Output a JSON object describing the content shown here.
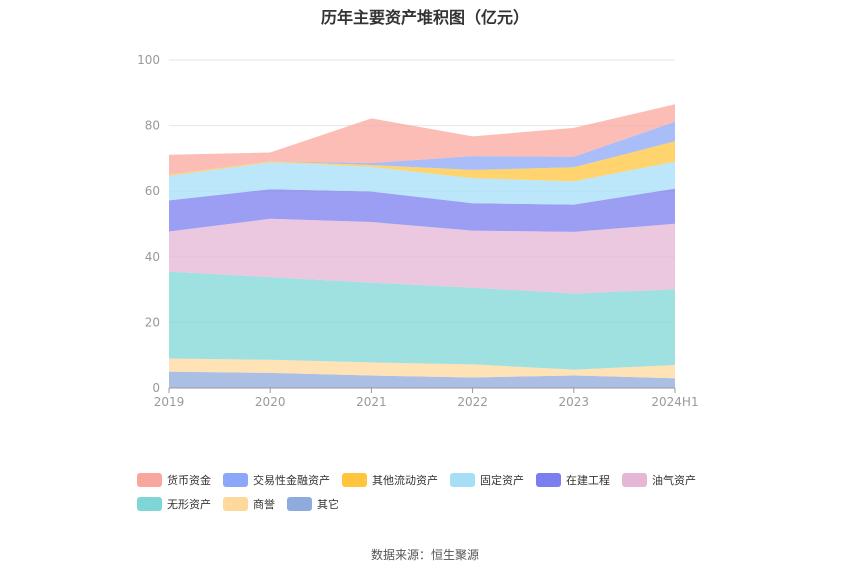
{
  "chart_data": {
    "type": "area",
    "stacked": true,
    "title": "历年主要资产堆积图（亿元）",
    "categories": [
      "2019",
      "2020",
      "2021",
      "2022",
      "2023",
      "2024H1"
    ],
    "ylim": [
      0,
      100
    ],
    "yticks": [
      0,
      20,
      40,
      60,
      80,
      100
    ],
    "grid": true,
    "legend_position": "bottom",
    "series": [
      {
        "name": "其它",
        "color": "#8faadc",
        "values": [
          5.0,
          4.6,
          3.8,
          3.2,
          3.8,
          3.0
        ]
      },
      {
        "name": "商誉",
        "color": "#ffd89c",
        "values": [
          4.0,
          4.0,
          4.0,
          4.0,
          1.8,
          4.0
        ]
      },
      {
        "name": "无形资产",
        "color": "#7fd6d6",
        "values": [
          26.5,
          25.2,
          24.3,
          23.4,
          23.2,
          23.1
        ]
      },
      {
        "name": "油气资产",
        "color": "#e6b6d6",
        "values": [
          12.2,
          17.8,
          18.5,
          17.4,
          18.8,
          20.0
        ]
      },
      {
        "name": "在建工程",
        "color": "#7b7ef0",
        "values": [
          9.5,
          9.0,
          9.3,
          8.3,
          8.3,
          10.7
        ]
      },
      {
        "name": "固定资产",
        "color": "#a6def8",
        "values": [
          7.5,
          8.2,
          7.5,
          7.7,
          7.1,
          8.2
        ]
      },
      {
        "name": "其他流动资产",
        "color": "#ffc53d",
        "values": [
          0.4,
          0.3,
          0.6,
          2.5,
          4.3,
          6.2
        ]
      },
      {
        "name": "交易性金融资产",
        "color": "#8ca7f7",
        "values": [
          0.0,
          0.0,
          0.6,
          4.2,
          3.2,
          6.0
        ]
      },
      {
        "name": "货币资金",
        "color": "#f9a79d",
        "values": [
          6.0,
          2.7,
          13.6,
          6.0,
          8.8,
          5.3
        ]
      }
    ],
    "legend_order": [
      "货币资金",
      "交易性金融资产",
      "其他流动资产",
      "固定资产",
      "在建工程",
      "油气资产",
      "无形资产",
      "商誉",
      "其它"
    ]
  },
  "source_label": "数据来源：恒生聚源"
}
